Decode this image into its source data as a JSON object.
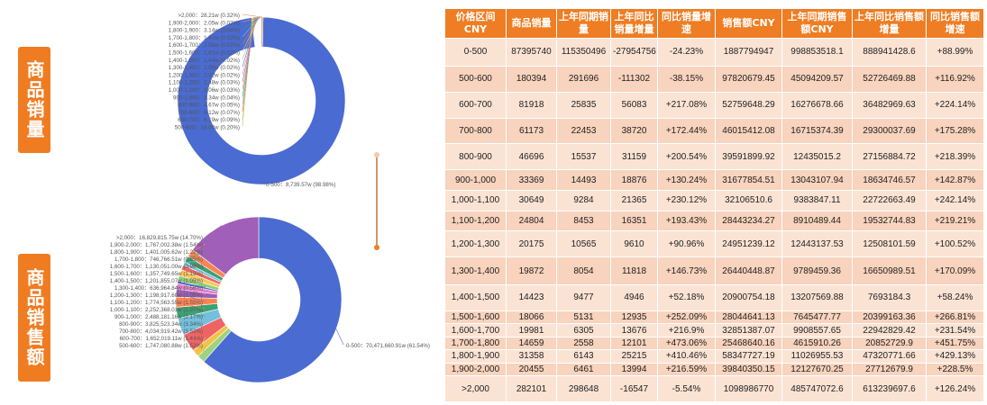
{
  "labels": {
    "sales_volume": "商品销量",
    "sales_revenue": "商品销售额"
  },
  "colors": {
    "accent": "#ef7d23",
    "header_bg": "#ef7d23",
    "row_bg": "#fbe3d4",
    "row_alt_bg": "#f8d3bd",
    "main_slice": "#4a6bd1"
  },
  "table": {
    "headers": [
      "价格区间CNY",
      "商品销量",
      "上年同期销量",
      "上年同比销量增量",
      "同比销量增速",
      "销售额CNY",
      "上年同期销售额CNY",
      "上年同比销售额增量",
      "同比销售额增速"
    ],
    "rows": [
      [
        "0-500",
        "87395740",
        "115350496",
        "-27954756",
        "-24.23%",
        "1887794947",
        "998853518.1",
        "888941428.6",
        "+88.99%"
      ],
      [
        "500-600",
        "180394",
        "291696",
        "-111302",
        "-38.15%",
        "97820679.45",
        "45094209.57",
        "52726469.88",
        "+116.92%"
      ],
      [
        "600-700",
        "81918",
        "25835",
        "56083",
        "+217.08%",
        "52759648.29",
        "16276678.66",
        "36482969.63",
        "+224.14%"
      ],
      [
        "700-800",
        "61173",
        "22453",
        "38720",
        "+172.44%",
        "46015412.08",
        "16715374.39",
        "29300037.69",
        "+175.28%"
      ],
      [
        "800-900",
        "46696",
        "15537",
        "31159",
        "+200.54%",
        "39591899.92",
        "12435015.2",
        "27156884.72",
        "+218.39%"
      ],
      [
        "900-1,000",
        "33369",
        "14493",
        "18876",
        "+130.24%",
        "31677854.51",
        "13043107.94",
        "18634746.57",
        "+142.87%"
      ],
      [
        "1,000-1,100",
        "30649",
        "9284",
        "21365",
        "+230.12%",
        "32106510.6",
        "9383847.11",
        "22722663.49",
        "+242.14%"
      ],
      [
        "1,100-1,200",
        "24804",
        "8453",
        "16351",
        "+193.43%",
        "28443234.27",
        "8910489.44",
        "19532744.83",
        "+219.21%"
      ],
      [
        "1,200-1,300",
        "20175",
        "10565",
        "9610",
        "+90.96%",
        "24951239.12",
        "12443137.53",
        "12508101.59",
        "+100.52%"
      ],
      [
        "1,300-1,400",
        "19872",
        "8054",
        "11818",
        "+146.73%",
        "26440448.87",
        "9789459.36",
        "16650989.51",
        "+170.09%"
      ],
      [
        "1,400-1,500",
        "14423",
        "9477",
        "4946",
        "+52.18%",
        "20900754.18",
        "13207569.88",
        "7693184.3",
        "+58.24%"
      ],
      [
        "1,500-1,600",
        "18066",
        "5131",
        "12935",
        "+252.09%",
        "28044641.13",
        "7645477.77",
        "20399163.36",
        "+266.81%"
      ],
      [
        "1,600-1,700",
        "19981",
        "6305",
        "13676",
        "+216.9%",
        "32851387.07",
        "9908557.65",
        "22942829.42",
        "+231.54%"
      ],
      [
        "1,700-1,800",
        "14659",
        "2558",
        "12101",
        "+473.06%",
        "25468640.16",
        "4615910.26",
        "20852729.9",
        "+451.75%"
      ],
      [
        "1,800-1,900",
        "31358",
        "6143",
        "25215",
        "+410.46%",
        "58347727.19",
        "11026955.53",
        "47320771.66",
        "+429.13%"
      ],
      [
        "1,900-2,000",
        "20455",
        "6461",
        "13994",
        "+216.59%",
        "39840350.15",
        "12127670.25",
        "27712679.9",
        "+228.5%"
      ],
      [
        ">2,000",
        "282101",
        "298648",
        "-16547",
        "-5.54%",
        "1098986770",
        "485747072.6",
        "613239697.6",
        "+126.24%"
      ]
    ]
  },
  "chart_data": [
    {
      "type": "pie",
      "variant": "donut",
      "categories": [
        "0-500",
        "500-600",
        "600-700",
        "700-800",
        "800-900",
        "900-1,000",
        "1,000-1,100",
        "1,100-1,200",
        "1,200-1,300",
        "1,300-1,400",
        "1,400-1,500",
        "1,500-1,600",
        "1,600-1,700",
        "1,700-1,800",
        "1,800-1,900",
        "1,900-2,000",
        ">2,000"
      ],
      "values": [
        8739.57,
        18.04,
        8.19,
        6.12,
        4.67,
        3.34,
        3.06,
        2.48,
        2.02,
        1.99,
        1.44,
        1.81,
        2.0,
        1.47,
        3.14,
        2.05,
        28.21
      ],
      "value_labels": [
        "8,739.57w",
        "18.04w",
        "8.19w",
        "6.12w",
        "4.67w",
        "3.34w",
        "3.06w",
        "2.48w",
        "2.02w",
        "1.99w",
        "1.44w",
        "1.81w",
        "2.00w",
        "1.47w",
        "3.14w",
        "2.05w",
        "28.21w"
      ],
      "percent_labels": [
        "98.98%",
        "0.20%",
        "0.09%",
        "0.07%",
        "0.05%",
        "0.04%",
        "0.03%",
        "0.03%",
        "0.02%",
        "0.02%",
        "0.02%",
        "0.02%",
        "0.02%",
        "0.02%",
        "0.04%",
        "0.02%",
        "0.32%"
      ],
      "colors": [
        "#4a6bd1",
        "#9cd37e",
        "#f5c344",
        "#ee6464",
        "#73c0de",
        "#3ba272",
        "#fc8452",
        "#9a60b4",
        "#ea7ccc",
        "#5470c6",
        "#91cc75",
        "#fac858",
        "#ee6666",
        "#73c0de",
        "#3ba272",
        "#fc8452",
        "#c88a5a"
      ]
    },
    {
      "type": "pie",
      "variant": "donut",
      "categories": [
        "0-500",
        "500-600",
        "600-700",
        "700-800",
        "800-900",
        "900-1,000",
        "1,000-1,100",
        "1,100-1,200",
        "1,200-1,300",
        "1,300-1,400",
        "1,400-1,500",
        "1,500-1,600",
        "1,600-1,700",
        "1,700-1,800",
        "1,800-1,900",
        "1,900-2,000",
        ">2,000"
      ],
      "values": [
        70471660.91,
        1747080.88,
        1652019.11,
        4034919.42,
        3825523.34,
        2488181.16,
        2252368.01,
        1774563.55,
        1198917.6,
        636964.84,
        1201855.07,
        1357749.65,
        1130051.0,
        746766.51,
        1401005.62,
        1767002.38,
        16829815.75
      ],
      "value_labels": [
        "70,471,660.91w",
        "1,747,080.88w",
        "1,652,019.11w",
        "4,034,919.42w",
        "3,825,523.34w",
        "2,488,181.16w",
        "2,252,368.01w",
        "1,774,563.55w",
        "1,198,917.60w",
        "636,964.84w",
        "1,201,855.07w",
        "1,357,749.65w",
        "1,130,051.00w",
        "746,766.51w",
        "1,401,005.62w",
        "1,767,002.38w",
        "16,829,815.75w"
      ],
      "percent_labels": [
        "61.54%",
        "1.52%",
        "1.44%",
        "3.52%",
        "3.34%",
        "2.17%",
        "1.97%",
        "1.55%",
        "1.05%",
        "0.56%",
        "1.05%",
        "1.19%",
        "0.99%",
        "0.65%",
        "1.22%",
        "1.54%",
        "14.70%"
      ],
      "colors": [
        "#4a6bd1",
        "#9cd37e",
        "#f5c344",
        "#ee6464",
        "#73c0de",
        "#3ba272",
        "#fc8452",
        "#9a60b4",
        "#ea7ccc",
        "#5470c6",
        "#91cc75",
        "#fac858",
        "#ee6666",
        "#73c0de",
        "#3ba272",
        "#fc8452",
        "#a05fb8"
      ]
    }
  ]
}
